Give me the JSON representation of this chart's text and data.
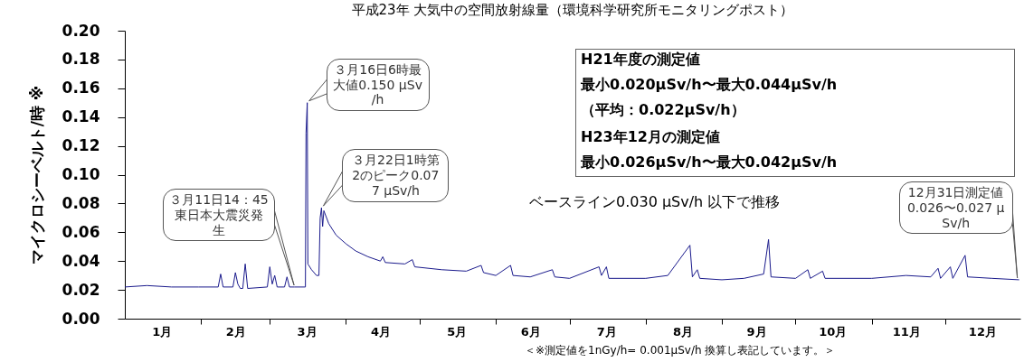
{
  "chart_data": {
    "type": "line",
    "title": "平成23年 大気中の空間放射線量（環境科学研究所モニタリングポスト）",
    "ylabel": "マイクロシーベルト/時 ※",
    "x": [
      "2011-01-01",
      "2011-01-10",
      "2011-01-20",
      "2011-01-31",
      "2011-02-08",
      "2011-02-09",
      "2011-02-10",
      "2011-02-14",
      "2011-02-15",
      "2011-02-16",
      "2011-02-17",
      "2011-02-18",
      "2011-02-19",
      "2011-02-20",
      "2011-02-28",
      "2011-03-01",
      "2011-03-02",
      "2011-03-03",
      "2011-03-04",
      "2011-03-07",
      "2011-03-08",
      "2011-03-09",
      "2011-03-11",
      "2011-03-15T12:00",
      "2011-03-15T18:00",
      "2011-03-16T06:00",
      "2011-03-16T12:00",
      "2011-03-18",
      "2011-03-20",
      "2011-03-21",
      "2011-03-21T12:00",
      "2011-03-22T01:00",
      "2011-03-22T12:00",
      "2011-03-23",
      "2011-03-25",
      "2011-03-28",
      "2011-04-01",
      "2011-04-05",
      "2011-04-10",
      "2011-04-15",
      "2011-04-16",
      "2011-04-17",
      "2011-04-25",
      "2011-04-28",
      "2011-04-29",
      "2011-05-10",
      "2011-05-20",
      "2011-05-26",
      "2011-05-27",
      "2011-06-01",
      "2011-06-07",
      "2011-06-08",
      "2011-06-15",
      "2011-06-24",
      "2011-06-25",
      "2011-07-01",
      "2011-07-13",
      "2011-07-14",
      "2011-07-16",
      "2011-07-17",
      "2011-08-01",
      "2011-08-10",
      "2011-08-19",
      "2011-08-20",
      "2011-08-22",
      "2011-08-23",
      "2011-09-01",
      "2011-09-10",
      "2011-09-18",
      "2011-09-20",
      "2011-09-21",
      "2011-10-01",
      "2011-10-06",
      "2011-10-07",
      "2011-10-12",
      "2011-10-13",
      "2011-11-01",
      "2011-11-15",
      "2011-11-25",
      "2011-11-28",
      "2011-11-29",
      "2011-12-03",
      "2011-12-04",
      "2011-12-09",
      "2011-12-10",
      "2011-12-20",
      "2011-12-31"
    ],
    "series": [
      {
        "color": "#1a1a8c",
        "values": [
          0.022,
          0.023,
          0.022,
          0.022,
          0.022,
          0.031,
          0.022,
          0.022,
          0.032,
          0.024,
          0.021,
          0.021,
          0.038,
          0.021,
          0.022,
          0.036,
          0.024,
          0.03,
          0.022,
          0.022,
          0.029,
          0.022,
          0.022,
          0.022,
          0.129,
          0.15,
          0.038,
          0.034,
          0.03,
          0.03,
          0.07,
          0.077,
          0.064,
          0.075,
          0.066,
          0.058,
          0.052,
          0.047,
          0.043,
          0.04,
          0.043,
          0.039,
          0.038,
          0.041,
          0.036,
          0.034,
          0.033,
          0.037,
          0.032,
          0.03,
          0.037,
          0.03,
          0.029,
          0.034,
          0.029,
          0.028,
          0.036,
          0.03,
          0.036,
          0.028,
          0.028,
          0.03,
          0.051,
          0.029,
          0.034,
          0.028,
          0.027,
          0.028,
          0.031,
          0.055,
          0.029,
          0.028,
          0.034,
          0.028,
          0.033,
          0.028,
          0.028,
          0.03,
          0.029,
          0.035,
          0.028,
          0.036,
          0.028,
          0.044,
          0.029,
          0.028,
          0.027
        ]
      }
    ],
    "xlim": [
      "2011-01-01",
      "2011-12-31T12:00"
    ],
    "xticks": [
      {
        "value": "2011-01-16",
        "label": "1月"
      },
      {
        "value": "2011-02-01",
        "label": null
      },
      {
        "value": "2011-02-15",
        "label": "2月"
      },
      {
        "value": "2011-03-01",
        "label": null
      },
      {
        "value": "2011-03-16",
        "label": "3月"
      },
      {
        "value": "2011-04-01",
        "label": null
      },
      {
        "value": "2011-04-15",
        "label": "4月"
      },
      {
        "value": "2011-05-01",
        "label": null
      },
      {
        "value": "2011-05-16",
        "label": "5月"
      },
      {
        "value": "2011-06-01",
        "label": null
      },
      {
        "value": "2011-06-15",
        "label": "6月"
      },
      {
        "value": "2011-07-01",
        "label": null
      },
      {
        "value": "2011-07-16",
        "label": "7月"
      },
      {
        "value": "2011-08-01",
        "label": null
      },
      {
        "value": "2011-08-16",
        "label": "8月"
      },
      {
        "value": "2011-09-01",
        "label": null
      },
      {
        "value": "2011-09-15",
        "label": "9月"
      },
      {
        "value": "2011-10-01",
        "label": null
      },
      {
        "value": "2011-10-16",
        "label": "10月"
      },
      {
        "value": "2011-11-01",
        "label": null
      },
      {
        "value": "2011-11-15",
        "label": "11月"
      },
      {
        "value": "2011-12-01",
        "label": null
      },
      {
        "value": "2011-12-16",
        "label": "12月"
      }
    ],
    "ylim": [
      0,
      0.2
    ],
    "yticks": [
      {
        "value": 0,
        "label": "0.00"
      },
      {
        "value": 0.02,
        "label": "0.02"
      },
      {
        "value": 0.04,
        "label": "0.04"
      },
      {
        "value": 0.06,
        "label": "0.06"
      },
      {
        "value": 0.08,
        "label": "0.08"
      },
      {
        "value": 0.1,
        "label": "0.10"
      },
      {
        "value": 0.12,
        "label": "0.12"
      },
      {
        "value": 0.14,
        "label": "0.14"
      },
      {
        "value": 0.16,
        "label": "0.16"
      },
      {
        "value": 0.18,
        "label": "0.18"
      },
      {
        "value": 0.2,
        "label": "0.20"
      }
    ],
    "grid": false,
    "marker": "none",
    "line_style": "solid",
    "annotations": [
      {
        "text": "３月11日14：45東日本大震災発生",
        "x": "2011-03-11T14:45",
        "y": 0.022
      },
      {
        "text": "３月16日6時最大値0.150 μSv/h",
        "x": "2011-03-16T06:00",
        "y": 0.15
      },
      {
        "text": "３月22日1時第2のピーク0.077 μSv/h",
        "x": "2011-03-22T01:00",
        "y": 0.077
      },
      "ベースライン0.030 μSv/h 以下で推移",
      {
        "text": "12月31日測定値0.026〜0.027 μSv/h",
        "x": "2011-12-31",
        "y": 0.027
      },
      "H21年度の測定値",
      "最小0.020μSv/h〜最大0.044μSv/h",
      "（平均：0.022μSv/h）",
      "H23年12月の測定値",
      "最小0.026μSv/h〜最大0.042μSv/h",
      "＜※測定値を1nGy/h= 0.001μSv/h 換算し表記しています。＞"
    ]
  }
}
